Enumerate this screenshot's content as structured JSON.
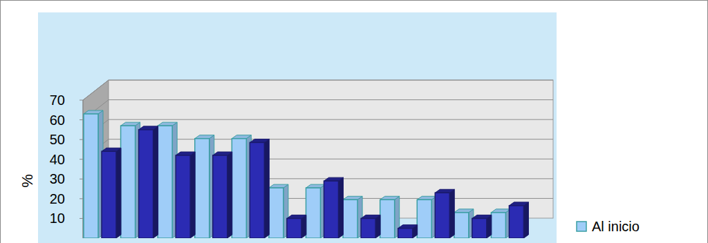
{
  "chart_data": {
    "type": "bar",
    "y_label": "%",
    "categories": [
      null,
      null,
      null,
      null,
      null,
      null,
      null,
      null,
      null,
      null,
      null,
      null
    ],
    "series": [
      {
        "name": "Al inicio",
        "color": "#9fcdf8",
        "values": [
          63,
          57,
          57,
          50.5,
          50.5,
          25.5,
          25.5,
          19.5,
          19.5,
          19.5,
          13,
          13
        ]
      },
      {
        "color": "#2b2bb3",
        "values": [
          44,
          55,
          42,
          42,
          48.5,
          10,
          29,
          10,
          5,
          23,
          10,
          16.5
        ]
      }
    ],
    "ylim": [
      0,
      70
    ],
    "yticks": [
      10,
      20,
      30,
      40,
      50,
      60,
      70
    ],
    "grid": true,
    "legend": "right",
    "tick_labels": "y"
  }
}
